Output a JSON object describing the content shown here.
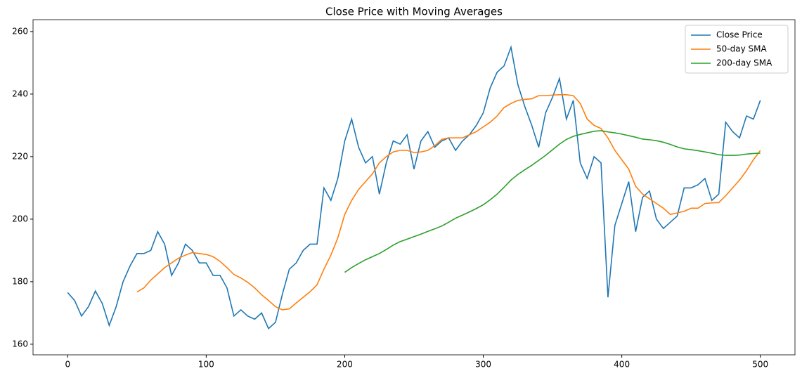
{
  "chart_data": {
    "type": "line",
    "title": "Close Price with Moving Averages",
    "x": [
      0,
      5,
      10,
      15,
      20,
      25,
      30,
      35,
      40,
      45,
      50,
      55,
      60,
      65,
      70,
      75,
      80,
      85,
      90,
      95,
      100,
      105,
      110,
      115,
      120,
      125,
      130,
      135,
      140,
      145,
      150,
      155,
      160,
      165,
      170,
      175,
      180,
      185,
      190,
      195,
      200,
      205,
      210,
      215,
      220,
      225,
      230,
      235,
      240,
      245,
      250,
      255,
      260,
      265,
      270,
      275,
      280,
      285,
      290,
      295,
      300,
      305,
      310,
      315,
      320,
      325,
      330,
      335,
      340,
      345,
      350,
      355,
      360,
      365,
      370,
      375,
      380,
      385,
      390,
      395,
      400,
      405,
      410,
      415,
      420,
      425,
      430,
      435,
      440,
      445,
      450,
      455,
      460,
      465,
      470,
      475,
      480,
      485,
      490,
      495,
      500
    ],
    "series": [
      {
        "name": "Close Price",
        "color": "#1f77b4",
        "values": [
          176.5,
          174,
          169,
          172,
          177,
          173,
          166,
          172,
          180,
          185,
          189,
          189,
          190,
          196,
          192,
          182,
          186,
          192,
          190,
          186,
          186,
          182,
          182,
          178,
          169,
          171,
          169,
          168,
          170,
          165,
          167,
          176,
          184,
          186,
          190,
          192,
          192,
          210,
          206,
          213,
          225,
          232,
          223,
          218,
          220,
          208,
          218,
          225,
          224,
          227,
          216,
          225,
          228,
          223,
          225,
          226,
          222,
          225,
          227,
          230,
          234,
          242,
          247,
          249,
          255,
          243,
          236,
          230,
          223,
          234,
          239,
          245,
          232,
          238,
          218,
          213,
          220,
          218,
          175,
          198,
          205,
          212,
          196,
          207,
          209,
          200,
          197,
          199,
          201,
          210,
          210,
          211,
          213,
          206,
          208,
          231,
          228,
          226,
          233,
          232,
          238
        ]
      },
      {
        "name": "50-day SMA",
        "color": "#ff7f0e",
        "values": [
          null,
          null,
          null,
          null,
          null,
          null,
          null,
          null,
          null,
          null,
          176.7,
          178,
          180.5,
          182.5,
          184.5,
          186,
          187.5,
          188.5,
          189.3,
          189,
          188.7,
          188,
          186.5,
          184.5,
          182.3,
          181.2,
          179.8,
          178,
          175.8,
          174,
          172,
          171,
          171.3,
          173.2,
          175,
          176.8,
          179,
          184,
          188.5,
          194,
          201.5,
          206,
          209.5,
          212,
          214.5,
          218,
          220,
          221.5,
          222,
          222,
          221.3,
          221.5,
          222,
          223.5,
          225.5,
          226,
          226,
          226,
          227,
          228,
          229.5,
          231,
          233,
          235.7,
          237,
          238,
          238.3,
          238.5,
          239.5,
          239.5,
          239.7,
          239.8,
          239.8,
          239.5,
          237,
          232,
          230,
          229,
          226,
          222,
          219,
          216,
          210.5,
          208,
          206.5,
          205,
          203.5,
          201.5,
          202,
          202.5,
          203.5,
          203.5,
          205,
          205.2,
          205.3,
          207.5,
          210,
          212.5,
          215.5,
          219,
          222
        ]
      },
      {
        "name": "200-day SMA",
        "color": "#2ca02c",
        "values": [
          null,
          null,
          null,
          null,
          null,
          null,
          null,
          null,
          null,
          null,
          null,
          null,
          null,
          null,
          null,
          null,
          null,
          null,
          null,
          null,
          null,
          null,
          null,
          null,
          null,
          null,
          null,
          null,
          null,
          null,
          null,
          null,
          null,
          null,
          null,
          null,
          null,
          null,
          null,
          null,
          183,
          184.5,
          185.8,
          187,
          188,
          189,
          190.3,
          191.7,
          192.8,
          193.6,
          194.4,
          195.2,
          196.1,
          196.9,
          197.8,
          199,
          200.3,
          201.3,
          202.3,
          203.4,
          204.6,
          206.2,
          208,
          210.2,
          212.5,
          214.3,
          215.8,
          217.2,
          218.8,
          220.4,
          222.2,
          224,
          225.5,
          226.5,
          227.1,
          227.6,
          228.1,
          228.3,
          227.9,
          227.6,
          227.2,
          226.7,
          226.2,
          225.6,
          225.4,
          225.1,
          224.6,
          223.9,
          223.1,
          222.5,
          222.2,
          221.9,
          221.5,
          221.1,
          220.6,
          220.4,
          220.4,
          220.5,
          220.8,
          221,
          221.1
        ]
      }
    ],
    "xlim": [
      -25,
      525
    ],
    "ylim": [
      156.6,
      263.8
    ],
    "xticks": [
      0,
      100,
      200,
      300,
      400,
      500
    ],
    "yticks": [
      160,
      180,
      200,
      220,
      240,
      260
    ],
    "grid": false,
    "legend": "upper right"
  }
}
